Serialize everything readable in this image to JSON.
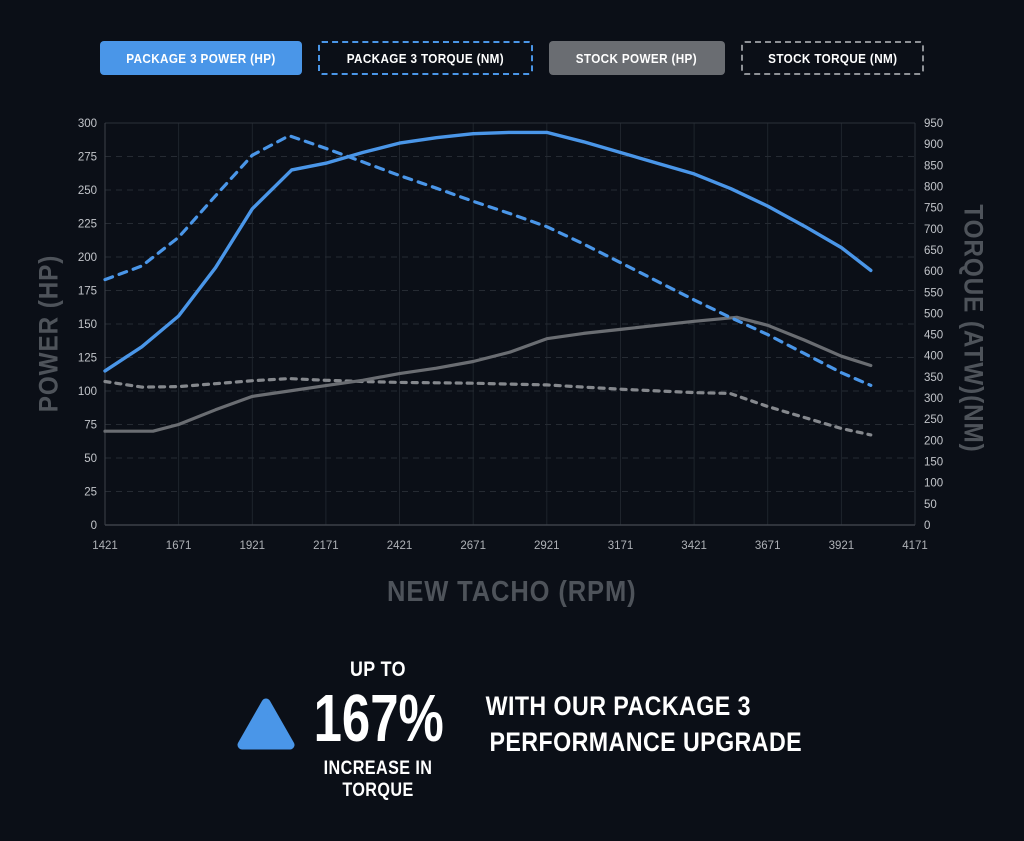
{
  "colors": {
    "background": "#0B0F17",
    "accent_blue": "#4A96E8",
    "gray_solid": "#6A6D72",
    "gray_dashed": "#85888D",
    "axis_title": "#4E535A",
    "tick_label": "#C2C5CA",
    "grid_horizontal": "#262B33",
    "grid_vertical": "#1F242C",
    "axis_line": "#3C4149"
  },
  "legend": {
    "items": [
      {
        "label": "PACKAGE 3 POWER (HP)",
        "variant": "solid-blue"
      },
      {
        "label": "PACKAGE 3 TORQUE (NM)",
        "variant": "dashed-blue"
      },
      {
        "label": "STOCK POWER (HP)",
        "variant": "solid-gray"
      },
      {
        "label": "STOCK TORQUE (NM)",
        "variant": "dashed-gray"
      }
    ]
  },
  "chart_data": {
    "type": "line",
    "x_axis": {
      "label": "NEW TACHO (RPM)",
      "range": [
        1421,
        4171
      ],
      "ticks": [
        1421,
        1671,
        1921,
        2171,
        2421,
        2671,
        2921,
        3171,
        3421,
        3671,
        3921,
        4171
      ]
    },
    "y_left": {
      "label": "POWER (HP)",
      "range": [
        0,
        300
      ],
      "tick_step": 25
    },
    "y_right": {
      "label": "TORQUE (ATW)(NM)",
      "range": [
        0,
        950
      ],
      "tick_step": 50
    },
    "grid": {
      "horizontal": "dashed",
      "vertical": "solid"
    },
    "legend_position": "top",
    "series": [
      {
        "name": "PACKAGE 3 POWER (HP)",
        "axis": "left",
        "color": "#4A96E8",
        "dash": null,
        "width": 3.4,
        "points": [
          [
            1421,
            115
          ],
          [
            1546,
            133
          ],
          [
            1671,
            156
          ],
          [
            1796,
            192
          ],
          [
            1921,
            236
          ],
          [
            2055,
            265
          ],
          [
            2171,
            270
          ],
          [
            2296,
            278
          ],
          [
            2421,
            285
          ],
          [
            2546,
            289
          ],
          [
            2671,
            292
          ],
          [
            2796,
            293
          ],
          [
            2921,
            293
          ],
          [
            3046,
            286
          ],
          [
            3171,
            278
          ],
          [
            3296,
            270
          ],
          [
            3421,
            262
          ],
          [
            3546,
            251
          ],
          [
            3671,
            238
          ],
          [
            3796,
            223
          ],
          [
            3921,
            207
          ],
          [
            4021,
            190
          ]
        ]
      },
      {
        "name": "PACKAGE 3 TORQUE (NM)",
        "axis": "right",
        "color": "#4A96E8",
        "dash": "8 7",
        "width": 3.2,
        "points": [
          [
            1421,
            580
          ],
          [
            1546,
            612
          ],
          [
            1671,
            680
          ],
          [
            1796,
            778
          ],
          [
            1921,
            874
          ],
          [
            2046,
            920
          ],
          [
            2171,
            890
          ],
          [
            2296,
            858
          ],
          [
            2421,
            826
          ],
          [
            2546,
            796
          ],
          [
            2671,
            765
          ],
          [
            2796,
            736
          ],
          [
            2921,
            705
          ],
          [
            3046,
            664
          ],
          [
            3171,
            620
          ],
          [
            3296,
            576
          ],
          [
            3421,
            532
          ],
          [
            3546,
            490
          ],
          [
            3671,
            450
          ],
          [
            3796,
            405
          ],
          [
            3921,
            360
          ],
          [
            4021,
            330
          ]
        ]
      },
      {
        "name": "STOCK POWER (HP)",
        "axis": "left",
        "color": "#6A6D72",
        "dash": null,
        "width": 3.2,
        "points": [
          [
            1421,
            70
          ],
          [
            1584,
            70
          ],
          [
            1671,
            75
          ],
          [
            1796,
            86
          ],
          [
            1921,
            96
          ],
          [
            2046,
            100
          ],
          [
            2171,
            104
          ],
          [
            2296,
            108
          ],
          [
            2421,
            113
          ],
          [
            2546,
            117
          ],
          [
            2671,
            122
          ],
          [
            2796,
            129
          ],
          [
            2921,
            139
          ],
          [
            3046,
            143
          ],
          [
            3171,
            146
          ],
          [
            3296,
            149
          ],
          [
            3421,
            152
          ],
          [
            3566,
            155
          ],
          [
            3671,
            149
          ],
          [
            3796,
            138
          ],
          [
            3921,
            126
          ],
          [
            4021,
            119
          ]
        ]
      },
      {
        "name": "STOCK TORQUE (NM)",
        "axis": "right",
        "color": "#85888D",
        "dash": "5 6",
        "width": 3.2,
        "points": [
          [
            1421,
            339
          ],
          [
            1546,
            326
          ],
          [
            1671,
            327
          ],
          [
            1796,
            334
          ],
          [
            1921,
            341
          ],
          [
            2046,
            346
          ],
          [
            2171,
            342
          ],
          [
            2296,
            339
          ],
          [
            2421,
            337
          ],
          [
            2546,
            336
          ],
          [
            2671,
            335
          ],
          [
            2796,
            333
          ],
          [
            2921,
            331
          ],
          [
            3046,
            326
          ],
          [
            3171,
            321
          ],
          [
            3296,
            317
          ],
          [
            3421,
            313
          ],
          [
            3543,
            311
          ],
          [
            3671,
            280
          ],
          [
            3796,
            254
          ],
          [
            3921,
            228
          ],
          [
            4021,
            213
          ]
        ]
      }
    ]
  },
  "callout": {
    "prefix": "UP TO",
    "stat": "167%",
    "suffix": "INCREASE IN TORQUE",
    "headline_line1": "WITH OUR PACKAGE 3",
    "headline_line2": "PERFORMANCE UPGRADE",
    "triangle_color": "#4A96E8"
  }
}
